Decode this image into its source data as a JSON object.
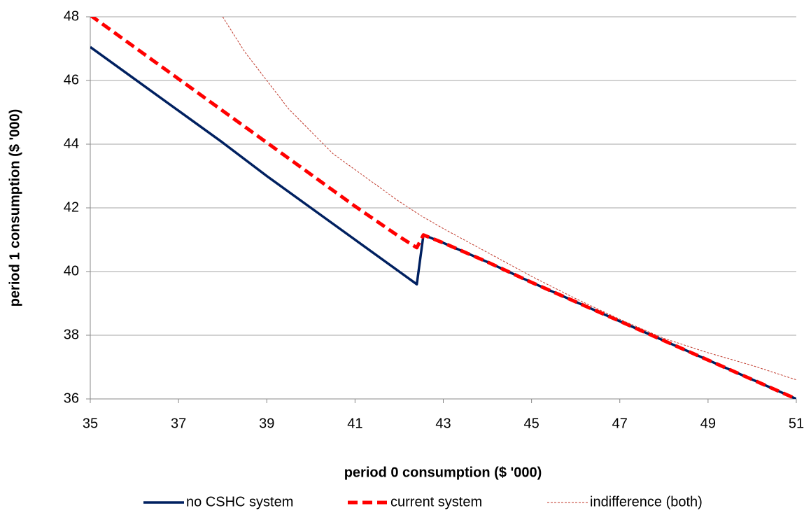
{
  "chart_data": {
    "type": "line",
    "x_label": "period 0 consumption ($ '000)",
    "y_label": "period 1 consumption ($ '000)",
    "xlim": [
      35,
      51
    ],
    "xticks": [
      35,
      37,
      39,
      41,
      43,
      45,
      47,
      49,
      51
    ],
    "ylim": [
      36,
      48
    ],
    "yticks": [
      36,
      38,
      40,
      42,
      44,
      46,
      48
    ],
    "grid": true,
    "legend": "bottom",
    "series": [
      {
        "name": "no CSHC system",
        "color": "#002060",
        "style": "solid",
        "x": [
          35,
          36,
          37,
          38,
          39,
          40,
          41,
          42,
          42.4,
          42.55,
          43,
          44,
          45,
          46,
          47,
          48,
          49,
          50,
          51
        ],
        "values": [
          47.05,
          46.05,
          45.05,
          44.05,
          43.0,
          42.0,
          41.0,
          40.0,
          39.6,
          41.15,
          40.9,
          40.3,
          39.66,
          39.05,
          38.44,
          37.83,
          37.22,
          36.61,
          36.0
        ]
      },
      {
        "name": "current system",
        "color": "#ff0000",
        "style": "dashed",
        "x": [
          35,
          36,
          37,
          38,
          39,
          40,
          41,
          42,
          42.4,
          42.55,
          43,
          44,
          45,
          46,
          47,
          48,
          49,
          50,
          51
        ],
        "values": [
          48.05,
          47.05,
          46.05,
          45.05,
          44.05,
          43.05,
          42.05,
          41.1,
          40.75,
          41.15,
          40.9,
          40.3,
          39.66,
          39.05,
          38.44,
          37.83,
          37.22,
          36.61,
          36.0
        ]
      },
      {
        "name": "indifference (both)",
        "color": "#c0392b",
        "style": "dotted",
        "x": [
          38,
          38.5,
          39,
          39.5,
          40,
          40.5,
          41,
          41.5,
          42,
          42.5,
          43,
          44,
          45,
          46,
          47,
          48,
          49,
          50,
          51
        ],
        "values": [
          48,
          46.9,
          46.0,
          45.1,
          44.4,
          43.7,
          43.2,
          42.7,
          42.2,
          41.75,
          41.35,
          40.6,
          39.85,
          39.15,
          38.5,
          37.9,
          37.45,
          37.05,
          36.6
        ]
      }
    ]
  }
}
